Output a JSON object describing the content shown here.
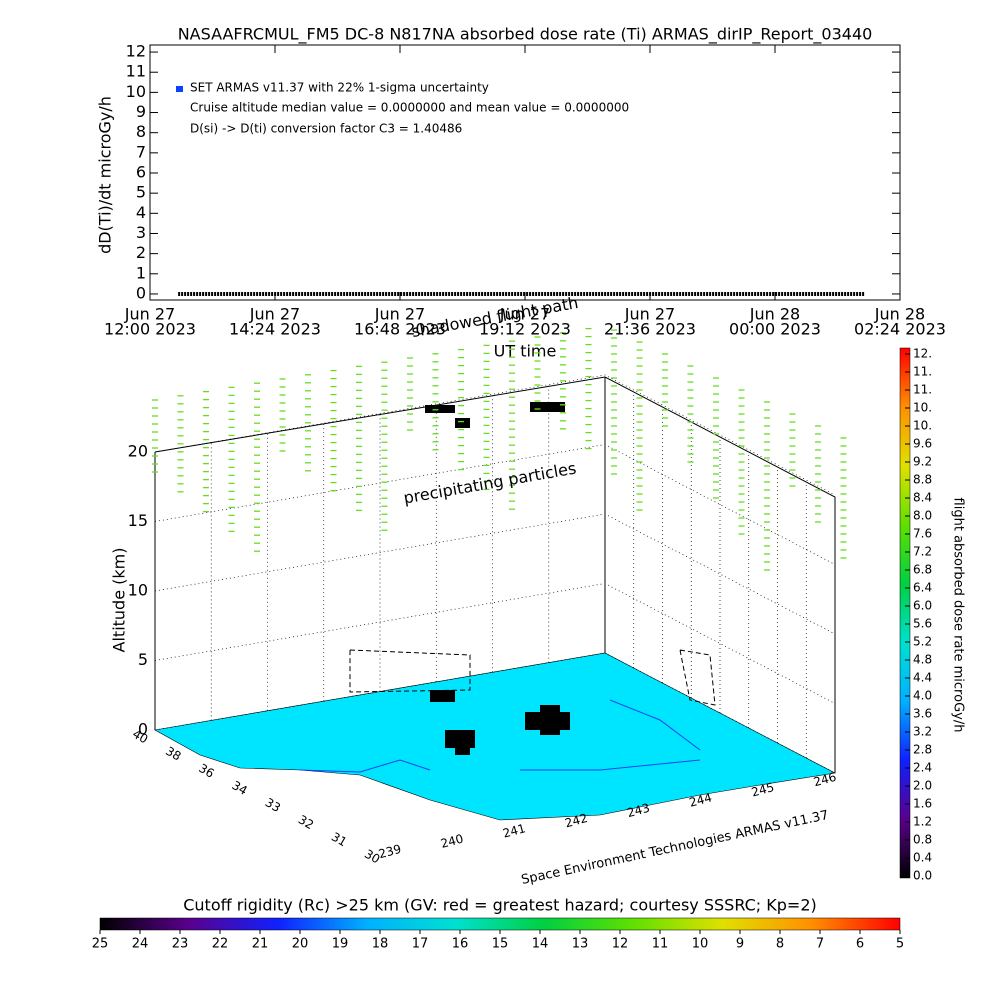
{
  "chart_data": [
    {
      "type": "line",
      "title": "NASAAFRCMUL_FM5 DC-8   N817NA absorbed dose rate (Ti) ARMAS_dirIP_Report_03440",
      "ylabel": "dD(Ti)/dt microGy/h",
      "xlabel": "UT time",
      "legend": [
        "SET ARMAS v11.37 with 22% 1-sigma uncertainty",
        "Cruise altitude median value = 0.0000000 and mean value = 0.0000000",
        "D(si) -> D(ti) conversion factor C3 = 1.40486"
      ],
      "legend_color": "#1040ff",
      "color": "#000000",
      "xlim": [
        0,
        14.4
      ],
      "xticks": [
        {
          "value": 0,
          "label": [
            "Jun 27",
            "12:00 2023"
          ]
        },
        {
          "value": 2.4,
          "label": [
            "Jun 27",
            "14:24 2023"
          ]
        },
        {
          "value": 4.8,
          "label": [
            "Jun 27",
            "16:48 2023"
          ]
        },
        {
          "value": 7.2,
          "label": [
            "Jun 27",
            "19:12 2023"
          ]
        },
        {
          "value": 9.6,
          "label": [
            "Jun 27",
            "21:36 2023"
          ]
        },
        {
          "value": 12,
          "label": [
            "Jun 28",
            "00:00 2023"
          ]
        },
        {
          "value": 14.4,
          "label": [
            "Jun 28",
            "02:24 2023"
          ]
        }
      ],
      "ylim": [
        -0.3,
        12.35
      ],
      "yticks": [
        0,
        1,
        2,
        3,
        4,
        5,
        6,
        7,
        8,
        9,
        10,
        11,
        12
      ],
      "x": [
        0.54,
        2.4,
        4.8,
        7.2,
        9.6,
        12,
        13.73
      ],
      "values": [
        0,
        0,
        0,
        0,
        0,
        0,
        0
      ]
    },
    {
      "type": "scatter3d",
      "annotations": [
        "shadowed flight path",
        "precipitating particles"
      ],
      "zlabel": "Altitude (km)",
      "zlim": [
        0,
        20
      ],
      "zticks": [
        0,
        5,
        10,
        15,
        20
      ],
      "lat_ticks": [
        40,
        38,
        36,
        34,
        33,
        32,
        31,
        30
      ],
      "lon_ticks": [
        239,
        240,
        241,
        242,
        243,
        244,
        245,
        246
      ],
      "credit": "Space Environment Technologies ARMAS v11.37",
      "ground_color": "#00e5ff",
      "particle_color": "#66dd22"
    },
    {
      "type": "colorbar",
      "label": "flight absorbed dose rate microGy/h",
      "lim": [
        0,
        11.6
      ],
      "colors": [
        "#000000",
        "#5a008c",
        "#1020ff",
        "#00b0ff",
        "#00e0d0",
        "#00d040",
        "#60e000",
        "#e0e000",
        "#ff9000",
        "#ff0000"
      ],
      "ticks": [
        {
          "value": 0,
          "label": "0.0"
        },
        0.4,
        0.8,
        1.2,
        1.6,
        {
          "value": 2,
          "label": "2.0"
        },
        2.4,
        2.8,
        3.2,
        3.6,
        {
          "value": 4,
          "label": "4.0"
        },
        4.4,
        4.8,
        5.2,
        5.6,
        {
          "value": 6,
          "label": "6.0"
        },
        6.4,
        6.8,
        7.2,
        7.6,
        {
          "value": 8,
          "label": "8.0"
        },
        8.4,
        8.8,
        9.2,
        9.6,
        {
          "value": 10,
          "label": "10."
        },
        {
          "value": 10.4,
          "label": "10."
        },
        {
          "value": 10.8,
          "label": "11."
        },
        {
          "value": 11.2,
          "label": "11."
        },
        {
          "value": 11.6,
          "label": "12."
        }
      ]
    },
    {
      "type": "colorbar",
      "label": "Cutoff rigidity (Rc) >25 km (GV: red = greatest hazard; courtesy SSSRC; Kp=2)",
      "lim": [
        25,
        5
      ],
      "colors": [
        "#000000",
        "#5a008c",
        "#1020ff",
        "#00b0ff",
        "#00e0d0",
        "#00d040",
        "#60e000",
        "#e0e000",
        "#ff9000",
        "#ff0000"
      ],
      "ticks": [
        25,
        24,
        23,
        22,
        21,
        20,
        19,
        18,
        17,
        16,
        15,
        14,
        13,
        12,
        11,
        10,
        9,
        8,
        7,
        6,
        5
      ]
    }
  ]
}
